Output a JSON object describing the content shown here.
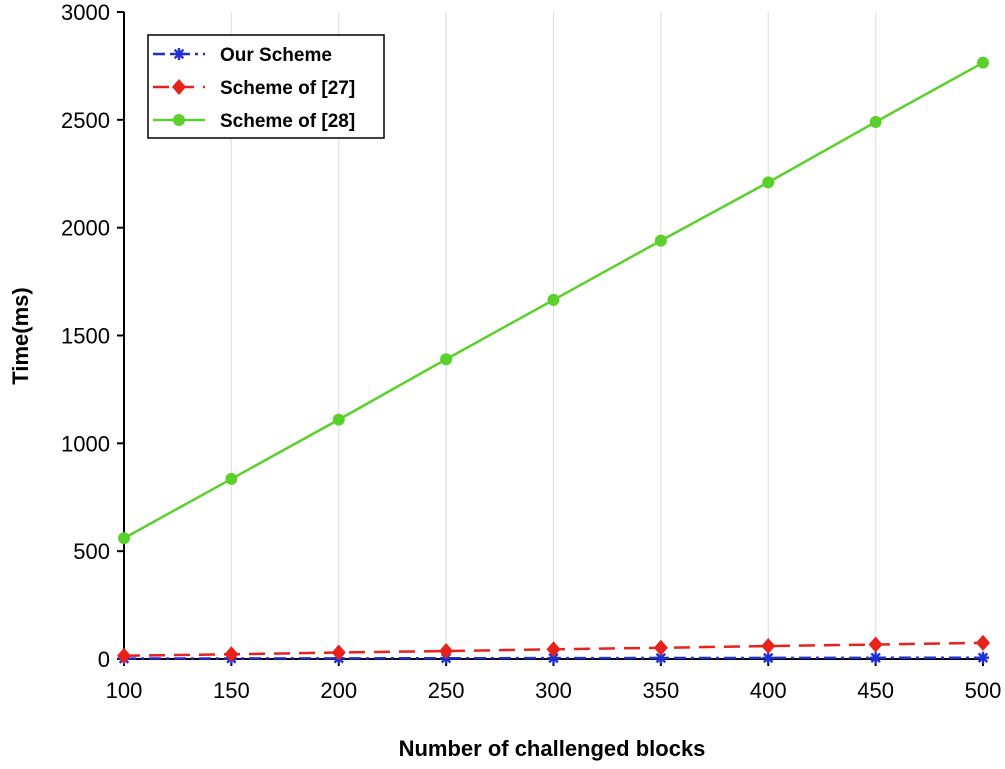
{
  "chart_data": {
    "type": "line",
    "title": "",
    "xlabel": "Number of challenged blocks",
    "ylabel": "Time(ms)",
    "x": [
      100,
      150,
      200,
      250,
      300,
      350,
      400,
      450,
      500
    ],
    "xlim": [
      100,
      500
    ],
    "ylim": [
      0,
      3000
    ],
    "xticks": [
      "100",
      "150",
      "200",
      "250",
      "300",
      "350",
      "400",
      "450",
      "500"
    ],
    "yticks": [
      "0",
      "500",
      "1000",
      "1500",
      "2000",
      "2500",
      "3000"
    ],
    "grid": "vertical",
    "legend_position": "top-left",
    "series": [
      {
        "name": "Our Scheme",
        "color": "#1f2fd6",
        "line_style": "dash-dot",
        "marker": "asterisk",
        "values": [
          2,
          2.5,
          3,
          3.5,
          4,
          4.5,
          5,
          5.5,
          6
        ]
      },
      {
        "name": "Scheme of [27]",
        "color": "#e8211b",
        "line_style": "dashed",
        "marker": "diamond",
        "values": [
          15,
          22,
          30,
          37,
          45,
          52,
          60,
          67,
          75
        ]
      },
      {
        "name": "Scheme of [28]",
        "color": "#5ad12a",
        "line_style": "solid",
        "marker": "circle",
        "values": [
          560,
          835,
          1110,
          1390,
          1665,
          1940,
          2210,
          2490,
          2765
        ]
      }
    ]
  }
}
